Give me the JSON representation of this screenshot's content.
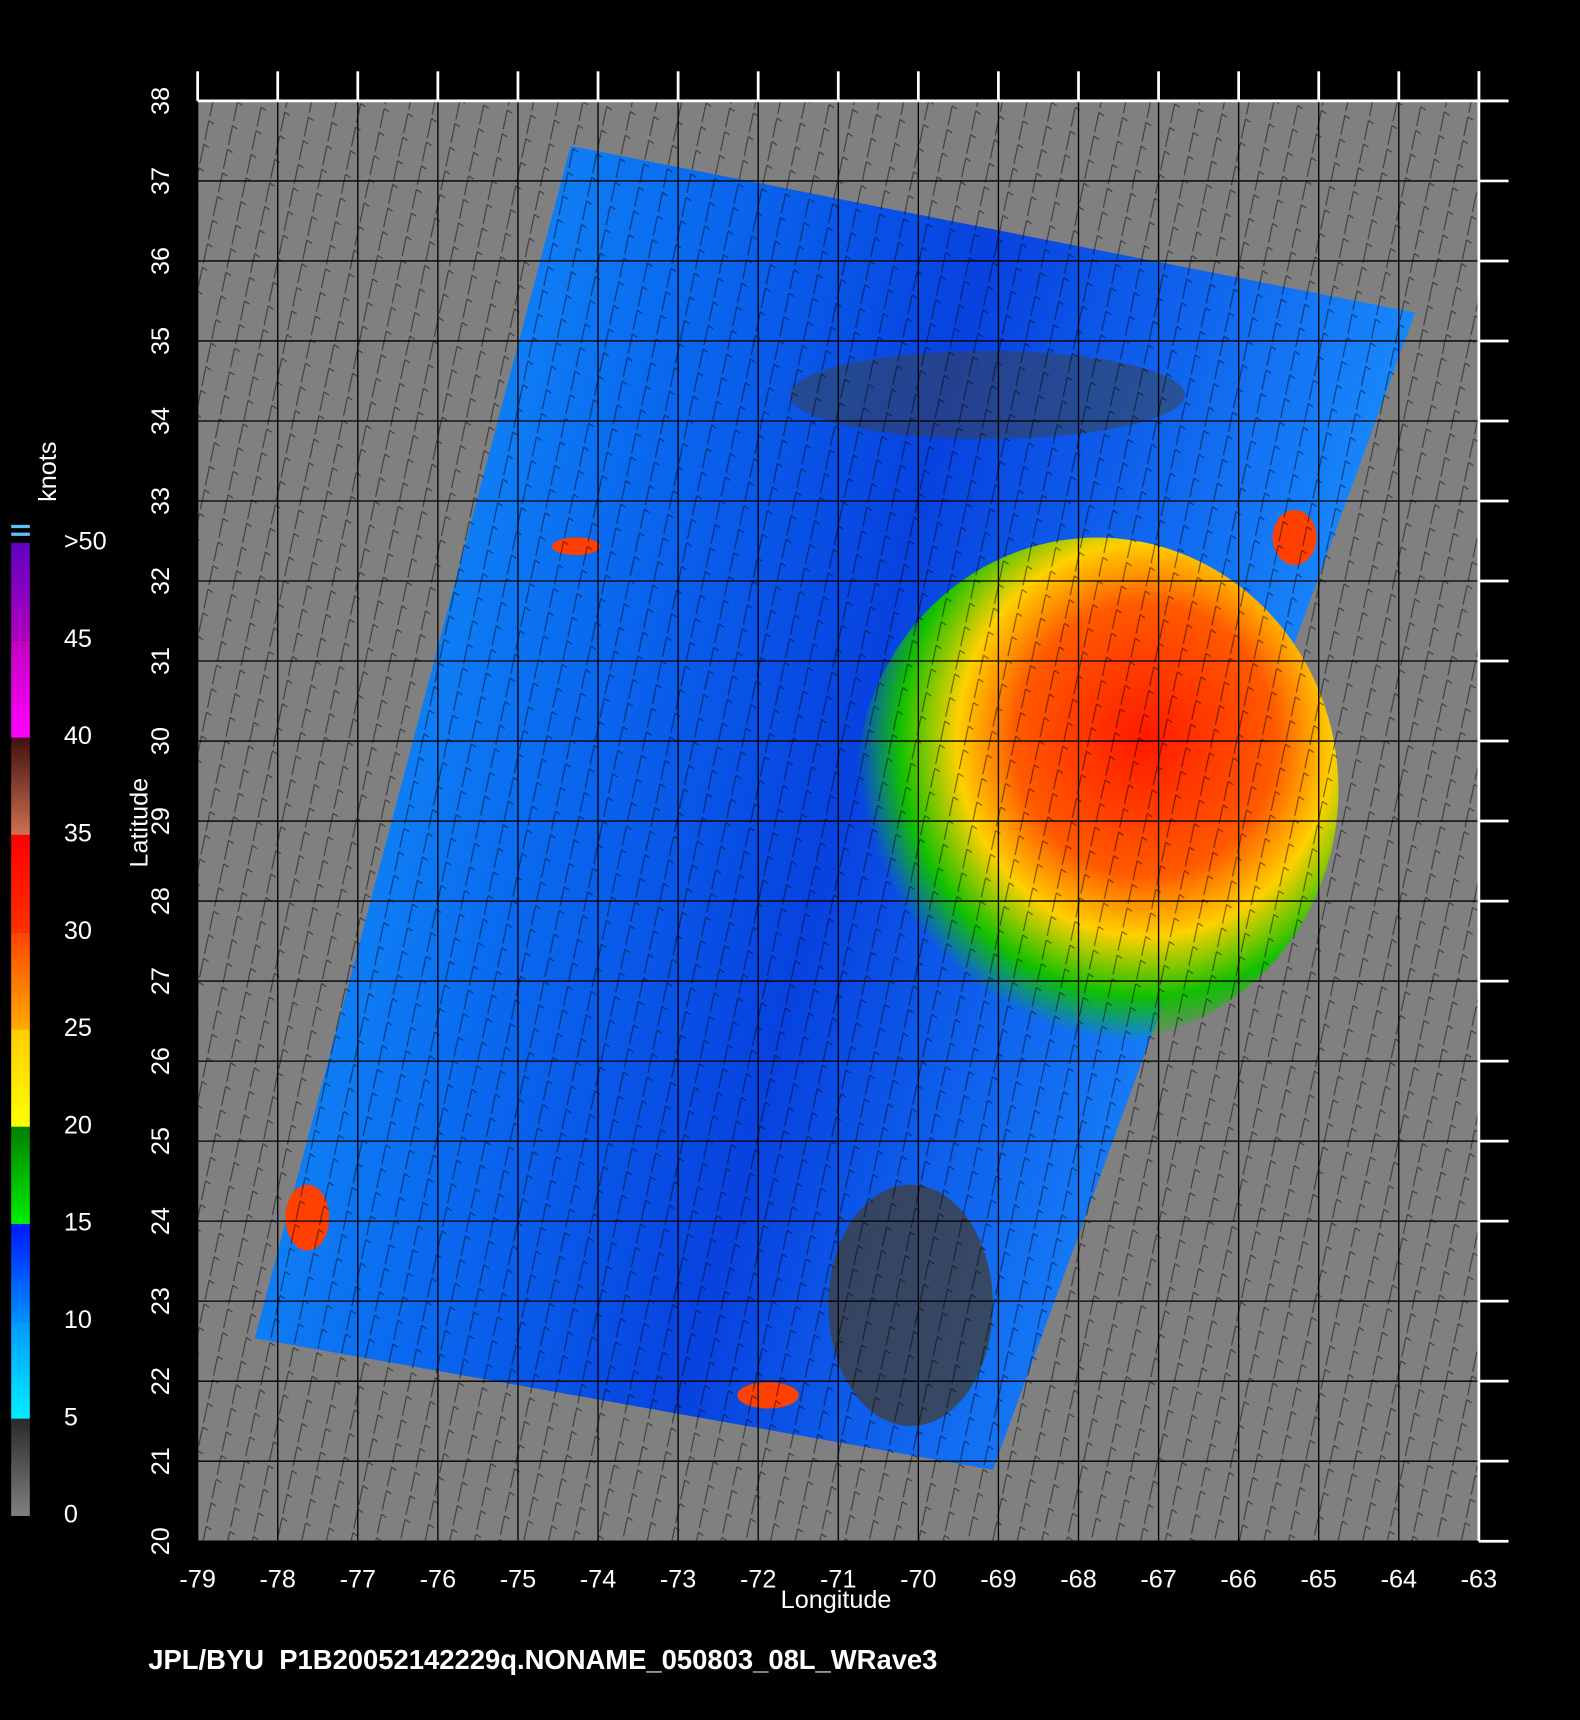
{
  "map": {
    "xlim": [
      -79,
      -63
    ],
    "ylim": [
      20,
      38
    ],
    "xticks": [
      -79,
      -78,
      -77,
      -76,
      -75,
      -74,
      -73,
      -72,
      -71,
      -70,
      -69,
      -68,
      -67,
      -66,
      -65,
      -64,
      -63
    ],
    "yticks": [
      20,
      21,
      22,
      23,
      24,
      25,
      26,
      27,
      28,
      29,
      30,
      31,
      32,
      33,
      34,
      35,
      36,
      37,
      38
    ],
    "xlabel": "Longitude",
    "ylabel": "Latitude",
    "colorbar": {
      "title": "knots",
      "lim": [
        0,
        50
      ],
      "ticks": [
        0,
        5,
        10,
        15,
        20,
        25,
        30,
        35,
        40,
        45,
        {
          "value": 50,
          "label": ">50"
        }
      ],
      "segments": [
        [
          "#808080",
          "#2a2a2a"
        ],
        [
          "#00eeff",
          "#0098ff"
        ],
        [
          "#0090ff",
          "#0018ff"
        ],
        [
          "#00ee00",
          "#008000"
        ],
        [
          "#ffff00",
          "#ffcc00"
        ],
        [
          "#ffaa00",
          "#ff4400"
        ],
        [
          "#ff3000",
          "#ff0000"
        ],
        [
          "#d07050",
          "#401010"
        ],
        [
          "#ff00ff",
          "#c000c0"
        ],
        [
          "#b000c0",
          "#6000c0"
        ]
      ]
    },
    "footer": "JPL/BYU  P1B20052142229q.NONAME_050803_08L_WRave3"
  }
}
